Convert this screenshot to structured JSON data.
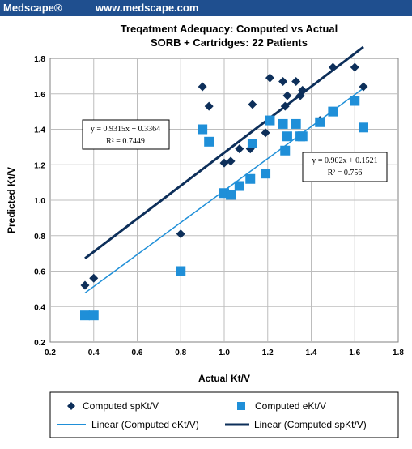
{
  "header": {
    "brand": "Medscape®",
    "url": "www.medscape.com"
  },
  "chart_data": {
    "type": "scatter",
    "title": "Treqatment Adequacy: Computed vs Actual",
    "subtitle": "SORB + Cartridges: 22 Patients",
    "xlabel": "Actual Kt/V",
    "ylabel": "Predicted Kt/V",
    "xlim": [
      0.2,
      1.8
    ],
    "ylim": [
      0.2,
      1.8
    ],
    "xticks": [
      "0.2",
      "0.4",
      "0.6",
      "0.8",
      "1.0",
      "1.2",
      "1.4",
      "1.6",
      "1.8"
    ],
    "yticks": [
      "0.2",
      "0.4",
      "0.6",
      "0.8",
      "1.0",
      "1.2",
      "1.4",
      "1.6",
      "1.8"
    ],
    "grid": true,
    "legend_position": "bottom",
    "series": [
      {
        "name": "Computed spKt/V",
        "marker": "diamond",
        "color": "#0d2f5a",
        "points": [
          [
            0.36,
            0.52
          ],
          [
            0.4,
            0.56
          ],
          [
            0.8,
            0.81
          ],
          [
            0.9,
            1.64
          ],
          [
            0.93,
            1.53
          ],
          [
            1.0,
            1.21
          ],
          [
            1.03,
            1.22
          ],
          [
            1.07,
            1.29
          ],
          [
            1.12,
            1.29
          ],
          [
            1.13,
            1.54
          ],
          [
            1.19,
            1.38
          ],
          [
            1.21,
            1.69
          ],
          [
            1.27,
            1.67
          ],
          [
            1.28,
            1.53
          ],
          [
            1.29,
            1.59
          ],
          [
            1.33,
            1.67
          ],
          [
            1.35,
            1.59
          ],
          [
            1.36,
            1.62
          ],
          [
            1.44,
            1.45
          ],
          [
            1.5,
            1.75
          ],
          [
            1.6,
            1.75
          ],
          [
            1.64,
            1.64
          ]
        ]
      },
      {
        "name": "Computed eKt/V",
        "marker": "square",
        "color": "#1f8fd8",
        "points": [
          [
            0.36,
            0.35
          ],
          [
            0.4,
            0.35
          ],
          [
            0.8,
            0.6
          ],
          [
            0.9,
            1.4
          ],
          [
            0.93,
            1.33
          ],
          [
            1.0,
            1.04
          ],
          [
            1.03,
            1.03
          ],
          [
            1.07,
            1.08
          ],
          [
            1.12,
            1.12
          ],
          [
            1.13,
            1.32
          ],
          [
            1.19,
            1.15
          ],
          [
            1.21,
            1.45
          ],
          [
            1.27,
            1.43
          ],
          [
            1.28,
            1.28
          ],
          [
            1.29,
            1.36
          ],
          [
            1.33,
            1.43
          ],
          [
            1.35,
            1.36
          ],
          [
            1.36,
            1.36
          ],
          [
            1.44,
            1.44
          ],
          [
            1.5,
            1.5
          ],
          [
            1.6,
            1.56
          ],
          [
            1.64,
            1.41
          ]
        ]
      }
    ],
    "trendlines": [
      {
        "name": "Linear (Computed eKt/V)",
        "color": "#1f8fd8",
        "slope": 0.902,
        "intercept": 0.1521,
        "x_range": [
          0.36,
          1.64
        ],
        "equation": "y = 0.902x + 0.1521",
        "r2": "R² = 0.756"
      },
      {
        "name": "Linear (Computed spKt/V)",
        "color": "#0d2f5a",
        "slope": 0.9315,
        "intercept": 0.3364,
        "x_range": [
          0.36,
          1.64
        ],
        "equation": "y = 0.9315x + 0.3364",
        "r2": "R² = 0.7449"
      }
    ]
  }
}
